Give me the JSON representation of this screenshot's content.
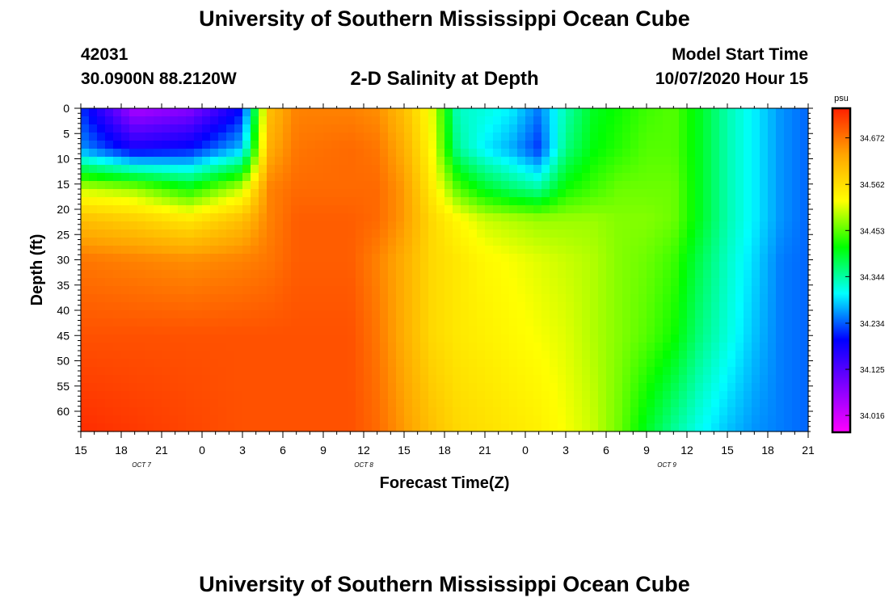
{
  "header": {
    "title": "University of Southern Mississippi Ocean Cube",
    "station_id": "42031",
    "coordinates": "30.0900N 88.2120W",
    "plot_title": "2-D Salinity at Depth",
    "model_start_label": "Model Start Time",
    "model_start_value": "10/07/2020 Hour 15"
  },
  "footer": {
    "title": "University of Southern Mississippi Ocean Cube"
  },
  "chart_data": {
    "type": "heatmap",
    "title": "2-D Salinity at Depth",
    "xlabel": "Forecast Time(Z)",
    "ylabel": "Depth (ft)",
    "x_unit": "forecast hours from model start",
    "xlim": [
      0,
      54
    ],
    "ylim": [
      0,
      64
    ],
    "y_inverted": true,
    "x_tick_hours": [
      0,
      3,
      6,
      9,
      12,
      15,
      18,
      21,
      24,
      27,
      30,
      33,
      36,
      39,
      42,
      45,
      48,
      51,
      54
    ],
    "x_tick_labels": [
      "15",
      "18",
      "21",
      "0",
      "3",
      "6",
      "9",
      "12",
      "15",
      "18",
      "21",
      "0",
      "3",
      "6",
      "9",
      "12",
      "15",
      "18",
      "21"
    ],
    "date_labels": [
      {
        "text": "OCT 7",
        "hour": 4.5
      },
      {
        "text": "OCT 8",
        "hour": 21
      },
      {
        "text": "OCT 9",
        "hour": 43.5
      }
    ],
    "y_ticks": [
      0,
      5,
      10,
      15,
      20,
      25,
      30,
      35,
      40,
      45,
      50,
      55,
      60
    ],
    "colorbar": {
      "unit": "psu",
      "range": [
        33.98,
        34.74
      ],
      "tick_labels": [
        "34.672",
        "34.562",
        "34.453",
        "34.344",
        "34.234",
        "34.125",
        "34.016"
      ],
      "colors": [
        "#ff00ff",
        "#8000ff",
        "#0000ff",
        "#00ffff",
        "#00ff00",
        "#ffff00",
        "#ffa500",
        "#ff2000"
      ]
    },
    "grid_hours": [
      0,
      4,
      8,
      12,
      14,
      16,
      20,
      22,
      24,
      26,
      28,
      30,
      32,
      34,
      36,
      38,
      40,
      42,
      44,
      46,
      48,
      50,
      52,
      54
    ],
    "grid_depths": [
      0,
      8,
      16,
      22,
      30,
      45,
      64
    ],
    "salinity_psu": [
      [
        34.22,
        34.05,
        34.08,
        34.2,
        34.6,
        34.66,
        34.66,
        34.65,
        34.6,
        34.52,
        34.33,
        34.32,
        34.3,
        34.25,
        34.34,
        34.4,
        34.42,
        34.44,
        34.45,
        34.4,
        34.34,
        34.3,
        34.26,
        34.24
      ],
      [
        34.26,
        34.18,
        34.2,
        34.28,
        34.62,
        34.67,
        34.68,
        34.67,
        34.62,
        34.53,
        34.35,
        34.3,
        34.27,
        34.22,
        34.36,
        34.41,
        34.43,
        34.45,
        34.45,
        34.4,
        34.34,
        34.3,
        34.26,
        34.24
      ],
      [
        34.5,
        34.48,
        34.42,
        34.5,
        34.66,
        34.68,
        34.68,
        34.68,
        34.64,
        34.55,
        34.45,
        34.4,
        34.37,
        34.35,
        34.42,
        34.44,
        34.46,
        34.46,
        34.46,
        34.4,
        34.34,
        34.3,
        34.26,
        34.24
      ],
      [
        34.6,
        34.58,
        34.55,
        34.6,
        34.66,
        34.69,
        34.69,
        34.68,
        34.64,
        34.57,
        34.53,
        34.5,
        34.49,
        34.48,
        34.48,
        34.48,
        34.47,
        34.47,
        34.46,
        34.4,
        34.34,
        34.3,
        34.26,
        34.24
      ],
      [
        34.67,
        34.66,
        34.65,
        34.66,
        34.67,
        34.69,
        34.69,
        34.66,
        34.62,
        34.57,
        34.55,
        34.53,
        34.52,
        34.51,
        34.5,
        34.49,
        34.47,
        34.46,
        34.44,
        34.38,
        34.33,
        34.29,
        34.25,
        34.24
      ],
      [
        34.7,
        34.7,
        34.7,
        34.7,
        34.7,
        34.7,
        34.7,
        34.67,
        34.62,
        34.57,
        34.55,
        34.54,
        34.53,
        34.52,
        34.51,
        34.49,
        34.47,
        34.45,
        34.42,
        34.36,
        34.32,
        34.28,
        34.25,
        34.24
      ],
      [
        34.73,
        34.72,
        34.71,
        34.7,
        34.7,
        34.7,
        34.7,
        34.68,
        34.64,
        34.6,
        34.57,
        34.56,
        34.55,
        34.54,
        34.52,
        34.5,
        34.46,
        34.4,
        34.35,
        34.31,
        34.28,
        34.26,
        34.25,
        34.24
      ]
    ]
  }
}
